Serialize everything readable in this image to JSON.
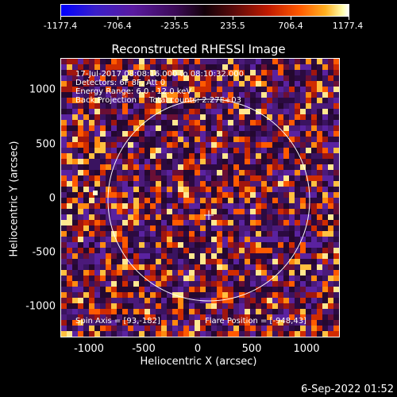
{
  "colorbar": {
    "ticks": [
      "-1177.4",
      "-706.4",
      "-235.5",
      "235.5",
      "706.4",
      "1177.4"
    ]
  },
  "title": "Reconstructed RHESSI Image",
  "info": {
    "line1": "17-Jul-2017 08:08:16.000 to 08:10:32.000",
    "line2": "Detectors: 6F 8F, Att 0",
    "line3": "Energy Range: 6.0 - 12.0 keV",
    "line4": "Back Projection     Total counts: 2.27E+03"
  },
  "spin_axis": "Spin Axis = [93,-182]",
  "flare_position": "Flare Position = [-948,43]",
  "axes": {
    "xlabel": "Heliocentric X (arcsec)",
    "ylabel": "Heliocentric Y (arcsec)",
    "xticks": [
      "-1000",
      "-500",
      "0",
      "500",
      "1000"
    ],
    "yticks": [
      "1000",
      "500",
      "0",
      "-500",
      "-1000"
    ]
  },
  "timestamp": "6-Sep-2022 01:52",
  "colors": {
    "background": "#000000",
    "limb": "#ffffff"
  }
}
